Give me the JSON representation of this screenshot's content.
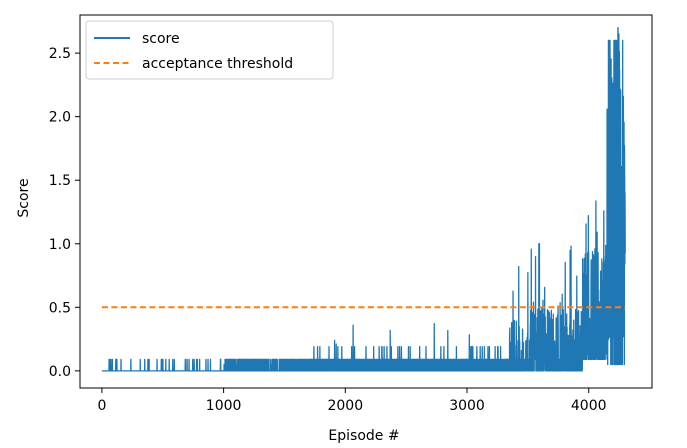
{
  "chart_data": {
    "type": "line",
    "xlabel": "Episode #",
    "ylabel": "Score",
    "xlim": [
      -180,
      4520
    ],
    "ylim": [
      -0.135,
      2.8
    ],
    "xticks": [
      0,
      1000,
      2000,
      3000,
      4000
    ],
    "yticks": [
      0.0,
      0.5,
      1.0,
      1.5,
      2.0,
      2.5
    ],
    "xtick_labels": [
      "0",
      "1000",
      "2000",
      "3000",
      "4000"
    ],
    "ytick_labels": [
      "0.0",
      "0.5",
      "1.0",
      "1.5",
      "2.0",
      "2.5"
    ],
    "legend_position": "upper-left",
    "grid": false,
    "series": [
      {
        "name": "score",
        "style": "solid",
        "color": "#1f77b4",
        "x_start": 0,
        "x_end": 4300,
        "episodes": 4300
      },
      {
        "name": "acceptance threshold",
        "style": "dashed",
        "color": "#ff7f0e",
        "x": [
          0,
          4300
        ],
        "y": [
          0.5,
          0.5
        ]
      }
    ]
  }
}
